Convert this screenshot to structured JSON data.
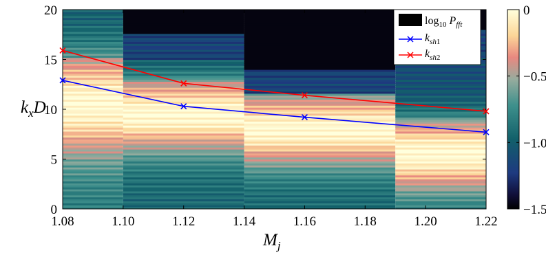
{
  "chart_data": {
    "type": "heatmap",
    "xlabel": "M_j",
    "ylabel": "k_x D",
    "xlim": [
      1.08,
      1.22
    ],
    "ylim": [
      0,
      20
    ],
    "xticks": [
      "1.08",
      "1.10",
      "1.12",
      "1.14",
      "1.16",
      "1.18",
      "1.20",
      "1.22"
    ],
    "yticks": [
      "0",
      "5",
      "10",
      "15",
      "20"
    ],
    "colorbar": {
      "label": "log10 P_fft",
      "range": [
        -1.5,
        0
      ],
      "ticks": [
        "0",
        "-0.5",
        "-1.0",
        "-1.5"
      ]
    },
    "heatmap_columns": [
      {
        "x_from": 1.08,
        "x_to": 1.1,
        "peak_y": 10.5,
        "spread": 3.6,
        "dark_above": null
      },
      {
        "x_from": 1.1,
        "x_to": 1.14,
        "peak_y": 9.5,
        "spread": 2.7,
        "dark_above": 17.5
      },
      {
        "x_from": 1.14,
        "x_to": 1.19,
        "peak_y": 8.0,
        "spread": 2.6,
        "dark_above": 14.0
      },
      {
        "x_from": 1.19,
        "x_to": 1.22,
        "peak_y": 5.5,
        "spread": 2.7,
        "dark_above": 18.0
      }
    ],
    "series": [
      {
        "name": "k_sh1",
        "color": "#0000ff",
        "marker": "x",
        "x": [
          1.08,
          1.12,
          1.16,
          1.22
        ],
        "y": [
          12.9,
          10.3,
          9.2,
          7.7
        ]
      },
      {
        "name": "k_sh2",
        "color": "#ff0000",
        "marker": "x",
        "x": [
          1.08,
          1.12,
          1.16,
          1.22
        ],
        "y": [
          15.9,
          12.6,
          11.4,
          9.8
        ]
      }
    ],
    "legend_position": "top-right"
  }
}
